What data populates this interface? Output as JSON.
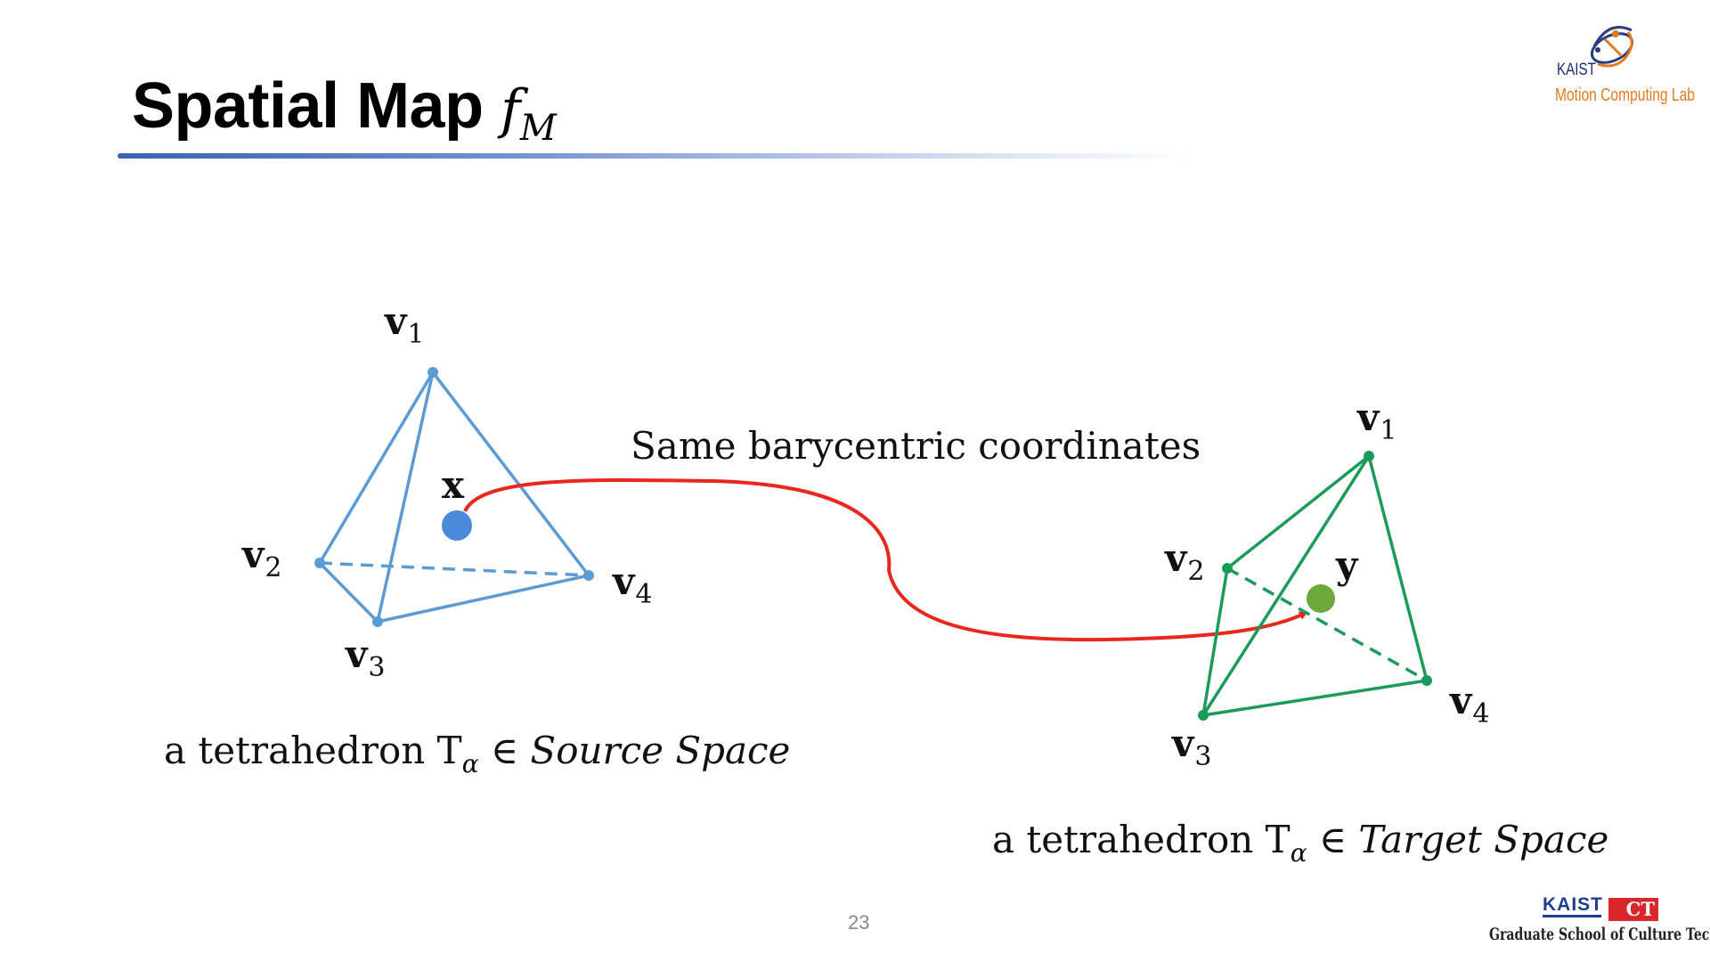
{
  "slide": {
    "title_text": "Spatial Map",
    "title_var": "f",
    "title_sub": "M",
    "page_number": "23"
  },
  "lab_logo": {
    "org": "KAIST",
    "name": "Motion Computing Lab",
    "icon": "atom-orbit-icon"
  },
  "school_logo": {
    "org": "KAIST",
    "mark": "CT",
    "name": "Graduate School of Culture Technology"
  },
  "source": {
    "vertices": [
      "v",
      "v",
      "v",
      "v"
    ],
    "indices": [
      "1",
      "2",
      "3",
      "4"
    ],
    "point_label": "x",
    "caption_prefix": "a tetrahedron T",
    "caption_sub": "α",
    "caption_symbol": "∈",
    "caption_space": "Source Space",
    "color": "#5b9bd5",
    "point_color": "#4a8ad8"
  },
  "target": {
    "vertices": [
      "v",
      "v",
      "v",
      "v"
    ],
    "indices": [
      "1",
      "2",
      "3",
      "4"
    ],
    "point_label": "y",
    "caption_prefix": "a tetrahedron T",
    "caption_sub": "α",
    "caption_symbol": "∈",
    "caption_space": "Target Space",
    "color": "#1a9b5a",
    "point_color": "#6ca83c"
  },
  "mapping": {
    "label": "Same barycentric coordinates",
    "color": "#e8281e"
  }
}
